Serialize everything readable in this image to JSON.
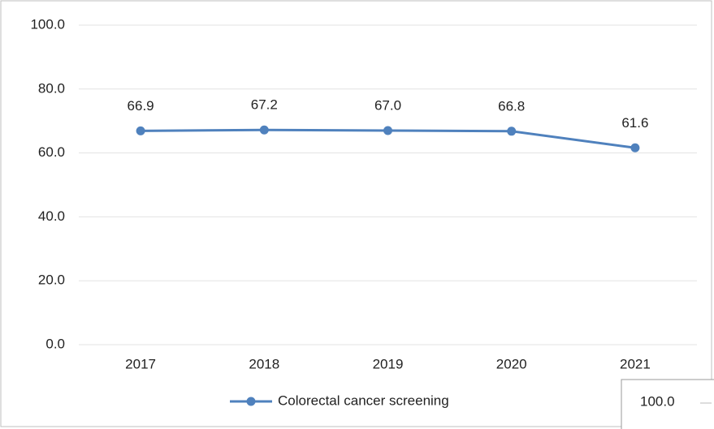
{
  "chart_data": {
    "type": "line",
    "categories": [
      "2017",
      "2018",
      "2019",
      "2020",
      "2021"
    ],
    "series": [
      {
        "name": "Colorectal cancer screening",
        "color": "#4f81bd",
        "values": [
          66.9,
          67.2,
          67.0,
          66.8,
          61.6
        ],
        "value_labels": [
          "66.9",
          "67.2",
          "67.0",
          "66.8",
          "61.6"
        ]
      }
    ],
    "ylim": [
      0,
      100
    ],
    "yticks": [
      {
        "value": 0,
        "label": "0.0"
      },
      {
        "value": 20,
        "label": "20.0"
      },
      {
        "value": 40,
        "label": "40.0"
      },
      {
        "value": 60,
        "label": "60.0"
      },
      {
        "value": 80,
        "label": "80.0"
      },
      {
        "value": 100,
        "label": "100.0"
      }
    ],
    "grid": true,
    "legend": "bottom",
    "annotation": "100.0"
  }
}
